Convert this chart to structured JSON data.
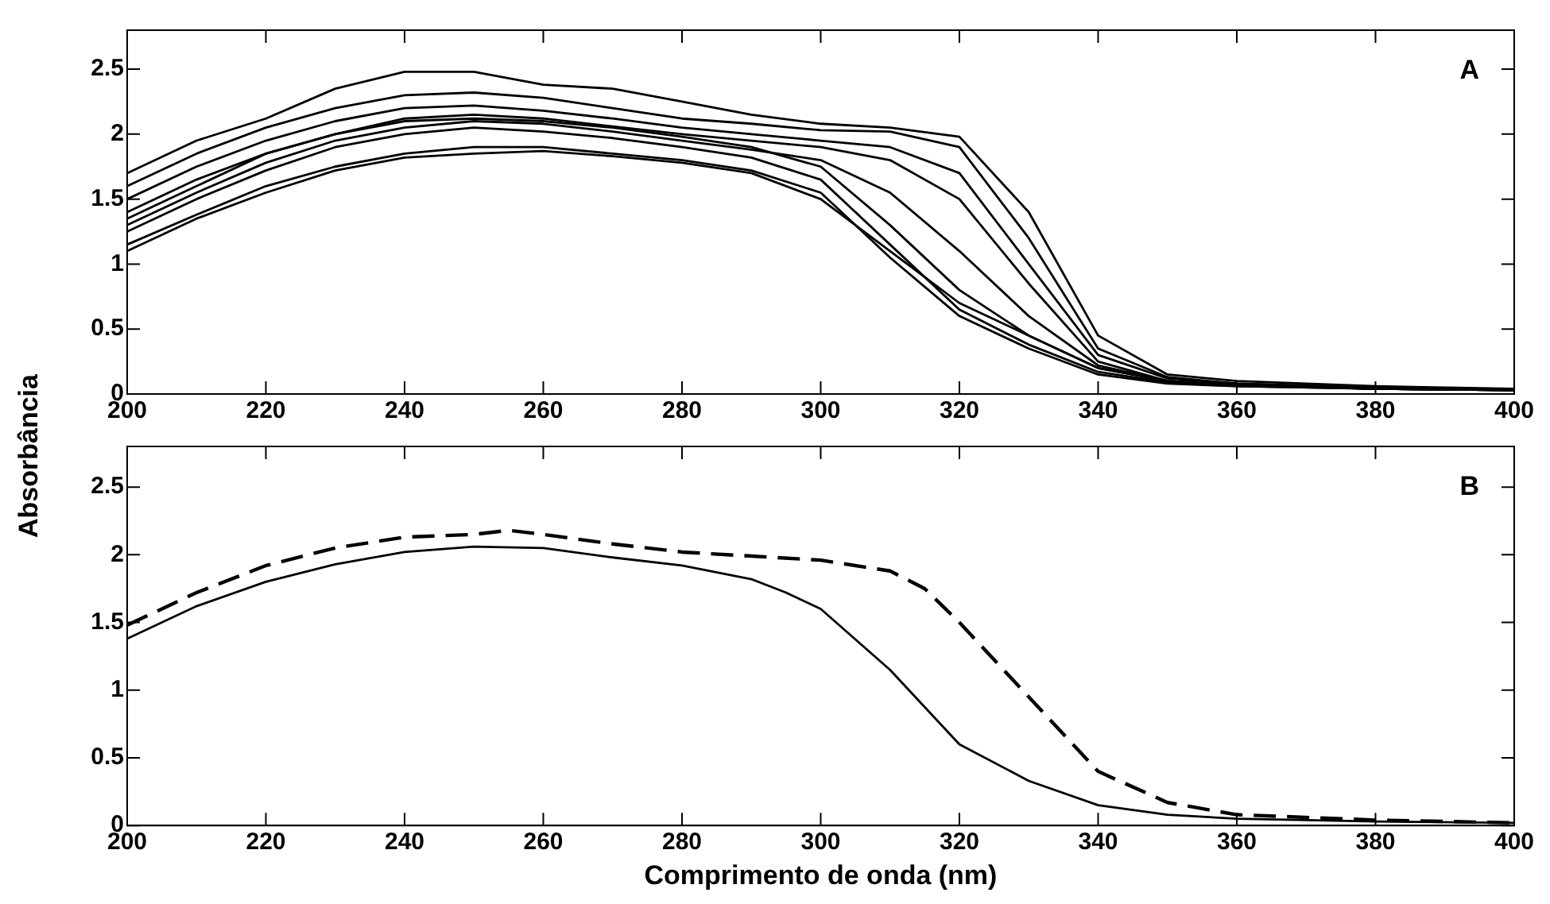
{
  "chart_data": [
    {
      "type": "line",
      "ylabel": "Absorbância",
      "annotations": [
        "A"
      ],
      "xlim": [
        200,
        400
      ],
      "ylim": [
        0,
        2.8
      ],
      "xticks": [
        200,
        220,
        240,
        260,
        280,
        300,
        320,
        340,
        360,
        380,
        400
      ],
      "yticks": [
        0,
        0.5,
        1,
        1.5,
        2,
        2.5
      ],
      "grid": false,
      "legend": false,
      "marker": "none",
      "line_style": "solid",
      "x": [
        200,
        210,
        220,
        230,
        240,
        250,
        260,
        270,
        280,
        290,
        300,
        310,
        320,
        330,
        340,
        350,
        360,
        380,
        400
      ],
      "series": [
        {
          "color": "#000000",
          "values": [
            1.7,
            1.95,
            2.12,
            2.35,
            2.48,
            2.48,
            2.38,
            2.35,
            2.25,
            2.15,
            2.08,
            2.05,
            1.98,
            1.4,
            0.45,
            0.15,
            0.1,
            0.06,
            0.04
          ]
        },
        {
          "color": "#000000",
          "values": [
            1.6,
            1.85,
            2.05,
            2.2,
            2.3,
            2.32,
            2.28,
            2.2,
            2.12,
            2.08,
            2.03,
            2.02,
            1.9,
            1.2,
            0.35,
            0.13,
            0.08,
            0.05,
            0.03
          ]
        },
        {
          "color": "#000000",
          "values": [
            1.5,
            1.75,
            1.95,
            2.1,
            2.2,
            2.22,
            2.18,
            2.12,
            2.05,
            2.0,
            1.95,
            1.9,
            1.7,
            1.0,
            0.3,
            0.12,
            0.08,
            0.05,
            0.03
          ]
        },
        {
          "color": "#000000",
          "values": [
            1.35,
            1.6,
            1.85,
            2.0,
            2.12,
            2.15,
            2.12,
            2.06,
            2.0,
            1.95,
            1.9,
            1.8,
            1.5,
            0.85,
            0.25,
            0.1,
            0.07,
            0.04,
            0.03
          ]
        },
        {
          "color": "#000000",
          "values": [
            1.4,
            1.65,
            1.85,
            2.0,
            2.1,
            2.12,
            2.1,
            2.05,
            1.98,
            1.9,
            1.75,
            1.3,
            0.8,
            0.45,
            0.2,
            0.1,
            0.07,
            0.04,
            0.03
          ]
        },
        {
          "color": "#000000",
          "values": [
            1.3,
            1.55,
            1.78,
            1.95,
            2.05,
            2.1,
            2.08,
            2.02,
            1.95,
            1.88,
            1.8,
            1.55,
            1.1,
            0.6,
            0.22,
            0.1,
            0.07,
            0.04,
            0.03
          ]
        },
        {
          "color": "#000000",
          "values": [
            1.25,
            1.5,
            1.72,
            1.9,
            2.0,
            2.05,
            2.02,
            1.97,
            1.9,
            1.82,
            1.65,
            1.15,
            0.65,
            0.38,
            0.17,
            0.09,
            0.06,
            0.04,
            0.03
          ]
        },
        {
          "color": "#000000",
          "values": [
            1.15,
            1.38,
            1.6,
            1.75,
            1.85,
            1.9,
            1.9,
            1.85,
            1.8,
            1.72,
            1.55,
            1.05,
            0.6,
            0.35,
            0.15,
            0.08,
            0.06,
            0.04,
            0.03
          ]
        },
        {
          "color": "#000000",
          "values": [
            1.1,
            1.35,
            1.55,
            1.72,
            1.82,
            1.85,
            1.87,
            1.83,
            1.78,
            1.7,
            1.5,
            1.1,
            0.7,
            0.45,
            0.2,
            0.1,
            0.07,
            0.04,
            0.03
          ]
        }
      ]
    },
    {
      "type": "line",
      "xlabel": "Comprimento de onda (nm)",
      "annotations": [
        "B"
      ],
      "xlim": [
        200,
        400
      ],
      "ylim": [
        0,
        2.8
      ],
      "xticks": [
        200,
        220,
        240,
        260,
        280,
        300,
        320,
        340,
        360,
        380,
        400
      ],
      "yticks": [
        0,
        0.5,
        1,
        1.5,
        2,
        2.5
      ],
      "grid": false,
      "legend": false,
      "marker": "none",
      "series": [
        {
          "color": "#000000",
          "line_style": "solid",
          "x": [
            200,
            210,
            220,
            230,
            240,
            250,
            260,
            270,
            280,
            290,
            295,
            300,
            310,
            320,
            330,
            340,
            350,
            360,
            380,
            400
          ],
          "values": [
            1.38,
            1.62,
            1.8,
            1.93,
            2.02,
            2.06,
            2.05,
            1.98,
            1.92,
            1.82,
            1.72,
            1.6,
            1.15,
            0.6,
            0.33,
            0.15,
            0.08,
            0.05,
            0.03,
            0.02
          ]
        },
        {
          "color": "#000000",
          "line_style": "dashed",
          "x": [
            200,
            210,
            220,
            230,
            240,
            250,
            255,
            260,
            270,
            280,
            290,
            300,
            310,
            315,
            320,
            330,
            340,
            350,
            360,
            380,
            400
          ],
          "values": [
            1.48,
            1.72,
            1.92,
            2.05,
            2.13,
            2.15,
            2.18,
            2.15,
            2.08,
            2.02,
            1.99,
            1.96,
            1.88,
            1.75,
            1.5,
            0.95,
            0.4,
            0.17,
            0.08,
            0.04,
            0.02
          ]
        }
      ]
    }
  ]
}
